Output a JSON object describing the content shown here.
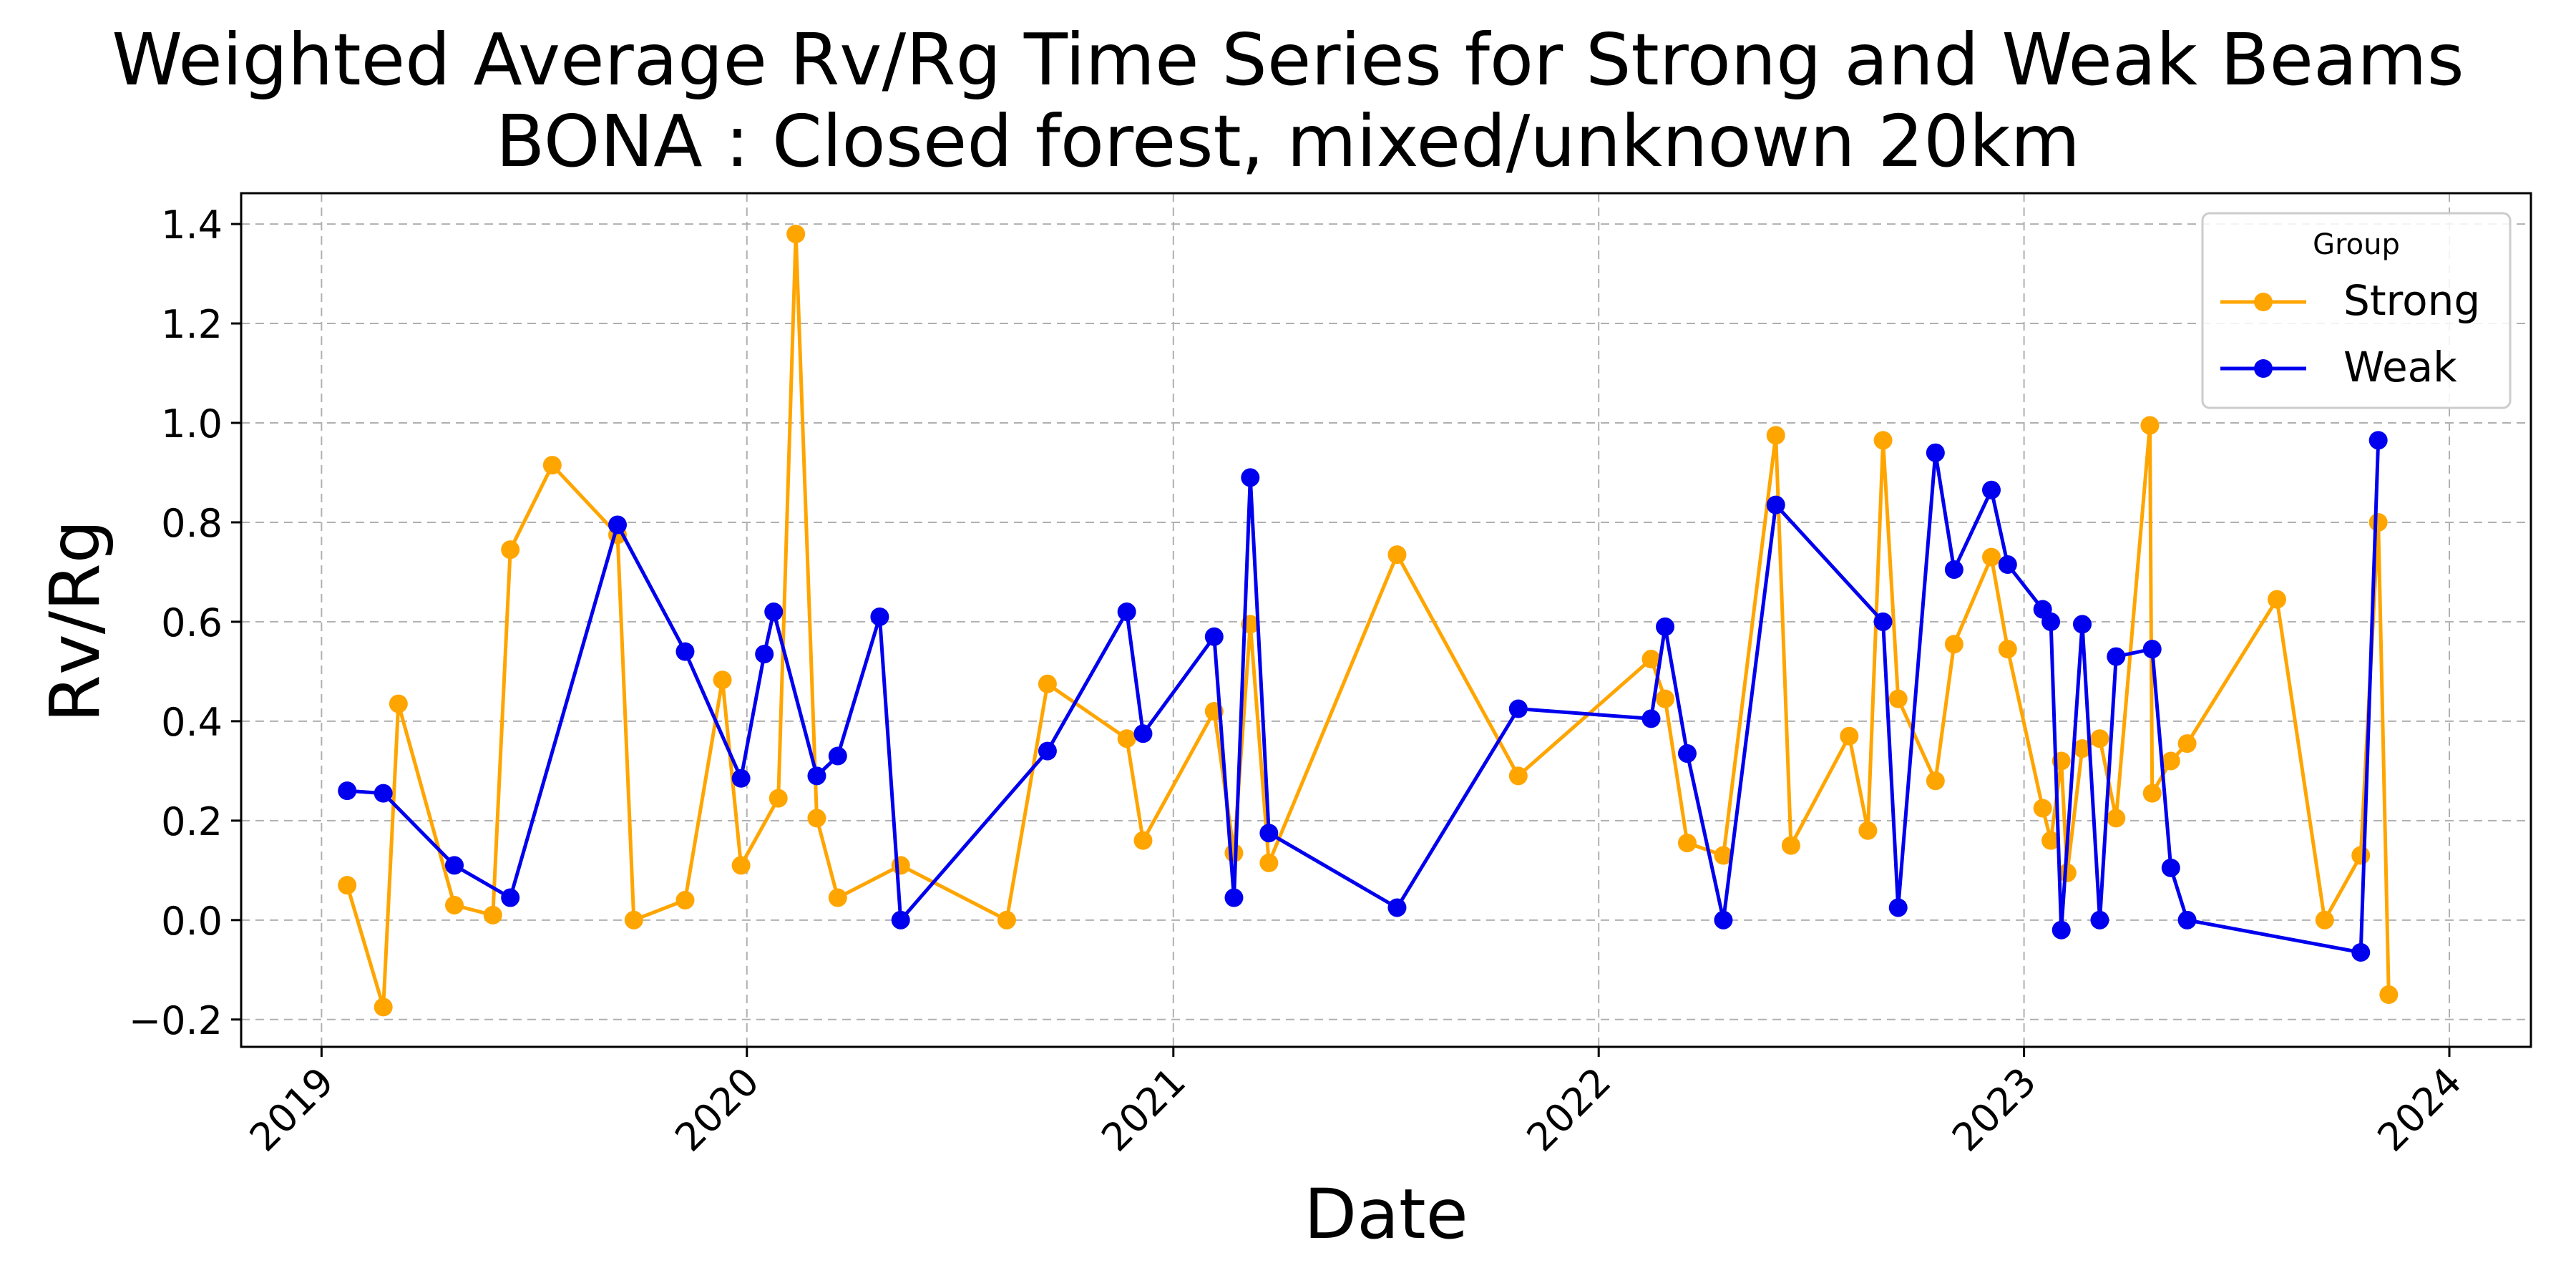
{
  "chart_data": {
    "type": "line",
    "title": "Weighted Average Rv/Rg Time Series for Strong and Weak Beams",
    "subtitle": "BONA : Closed forest, mixed/unknown 20km",
    "xlabel": "Date",
    "ylabel": "Rv/Rg",
    "xlim": [
      "2018-10-24",
      "2024-03-11"
    ],
    "ylim": [
      -0.255,
      1.462
    ],
    "x_ticks": [
      "2019",
      "2020",
      "2021",
      "2022",
      "2023",
      "2024"
    ],
    "y_ticks": [
      "1.4",
      "1.2",
      "1.0",
      "0.8",
      "0.6",
      "0.4",
      "0.2",
      "0.0",
      "−0.2"
    ],
    "grid": true,
    "legend": {
      "title": "Group",
      "position": "top-right"
    },
    "series": [
      {
        "name": "Strong",
        "color": "#FFA500",
        "points": [
          [
            "2019-01-23",
            0.07
          ],
          [
            "2019-02-23",
            -0.175
          ],
          [
            "2019-03-08",
            0.435
          ],
          [
            "2019-04-25",
            0.03
          ],
          [
            "2019-05-28",
            0.01
          ],
          [
            "2019-06-12",
            0.745
          ],
          [
            "2019-07-18",
            0.915
          ],
          [
            "2019-09-12",
            0.775
          ],
          [
            "2019-09-26",
            0.0
          ],
          [
            "2019-11-09",
            0.04
          ],
          [
            "2019-12-11",
            0.483
          ],
          [
            "2019-12-27",
            0.11
          ],
          [
            "2020-01-28",
            0.245
          ],
          [
            "2020-02-12",
            1.38
          ],
          [
            "2020-03-01",
            0.205
          ],
          [
            "2020-03-19",
            0.045
          ],
          [
            "2020-05-12",
            0.11
          ],
          [
            "2020-08-11",
            0.0
          ],
          [
            "2020-09-15",
            0.475
          ],
          [
            "2020-11-22",
            0.365
          ],
          [
            "2020-12-06",
            0.16
          ],
          [
            "2021-02-05",
            0.42
          ],
          [
            "2021-02-22",
            0.135
          ],
          [
            "2021-03-08",
            0.595
          ],
          [
            "2021-03-24",
            0.115
          ],
          [
            "2021-07-12",
            0.735
          ],
          [
            "2021-10-24",
            0.29
          ],
          [
            "2022-02-15",
            0.525
          ],
          [
            "2022-02-27",
            0.445
          ],
          [
            "2022-03-18",
            0.155
          ],
          [
            "2022-04-18",
            0.13
          ],
          [
            "2022-06-02",
            0.975
          ],
          [
            "2022-06-15",
            0.15
          ],
          [
            "2022-08-04",
            0.37
          ],
          [
            "2022-08-20",
            0.18
          ],
          [
            "2022-09-02",
            0.965
          ],
          [
            "2022-09-15",
            0.445
          ],
          [
            "2022-10-17",
            0.28
          ],
          [
            "2022-11-02",
            0.555
          ],
          [
            "2022-12-04",
            0.73
          ],
          [
            "2022-12-18",
            0.545
          ],
          [
            "2023-01-17",
            0.225
          ],
          [
            "2023-01-24",
            0.16
          ],
          [
            "2023-02-02",
            0.32
          ],
          [
            "2023-02-07",
            0.095
          ],
          [
            "2023-02-20",
            0.345
          ],
          [
            "2023-03-07",
            0.365
          ],
          [
            "2023-03-21",
            0.205
          ],
          [
            "2023-04-19",
            0.995
          ],
          [
            "2023-04-21",
            0.255
          ],
          [
            "2023-05-07",
            0.32
          ],
          [
            "2023-05-21",
            0.355
          ],
          [
            "2023-08-06",
            0.645
          ],
          [
            "2023-09-16",
            0.0
          ],
          [
            "2023-10-17",
            0.13
          ],
          [
            "2023-11-01",
            0.8
          ],
          [
            "2023-11-10",
            -0.15
          ]
        ]
      },
      {
        "name": "Weak",
        "color": "#0000EE",
        "points": [
          [
            "2019-01-23",
            0.26
          ],
          [
            "2019-02-23",
            0.255
          ],
          [
            "2019-04-25",
            0.11
          ],
          [
            "2019-06-12",
            0.045
          ],
          [
            "2019-09-12",
            0.795
          ],
          [
            "2019-11-09",
            0.54
          ],
          [
            "2019-12-27",
            0.285
          ],
          [
            "2020-01-16",
            0.535
          ],
          [
            "2020-01-24",
            0.62
          ],
          [
            "2020-03-01",
            0.29
          ],
          [
            "2020-03-19",
            0.33
          ],
          [
            "2020-04-24",
            0.61
          ],
          [
            "2020-05-12",
            0.0
          ],
          [
            "2020-09-15",
            0.34
          ],
          [
            "2020-11-22",
            0.62
          ],
          [
            "2020-12-06",
            0.375
          ],
          [
            "2021-02-05",
            0.57
          ],
          [
            "2021-02-22",
            0.045
          ],
          [
            "2021-03-08",
            0.89
          ],
          [
            "2021-03-24",
            0.175
          ],
          [
            "2021-07-12",
            0.025
          ],
          [
            "2021-10-24",
            0.425
          ],
          [
            "2022-02-15",
            0.405
          ],
          [
            "2022-02-27",
            0.59
          ],
          [
            "2022-03-18",
            0.335
          ],
          [
            "2022-04-18",
            0.0
          ],
          [
            "2022-06-02",
            0.835
          ],
          [
            "2022-09-02",
            0.6
          ],
          [
            "2022-09-15",
            0.025
          ],
          [
            "2022-10-17",
            0.94
          ],
          [
            "2022-11-02",
            0.705
          ],
          [
            "2022-12-04",
            0.865
          ],
          [
            "2022-12-18",
            0.715
          ],
          [
            "2023-01-17",
            0.625
          ],
          [
            "2023-01-24",
            0.6
          ],
          [
            "2023-02-02",
            -0.02
          ],
          [
            "2023-02-20",
            0.595
          ],
          [
            "2023-03-07",
            0.0
          ],
          [
            "2023-03-21",
            0.53
          ],
          [
            "2023-04-21",
            0.545
          ],
          [
            "2023-05-07",
            0.105
          ],
          [
            "2023-05-21",
            0.0
          ],
          [
            "2023-10-17",
            -0.065
          ],
          [
            "2023-11-01",
            0.965
          ]
        ]
      }
    ]
  }
}
